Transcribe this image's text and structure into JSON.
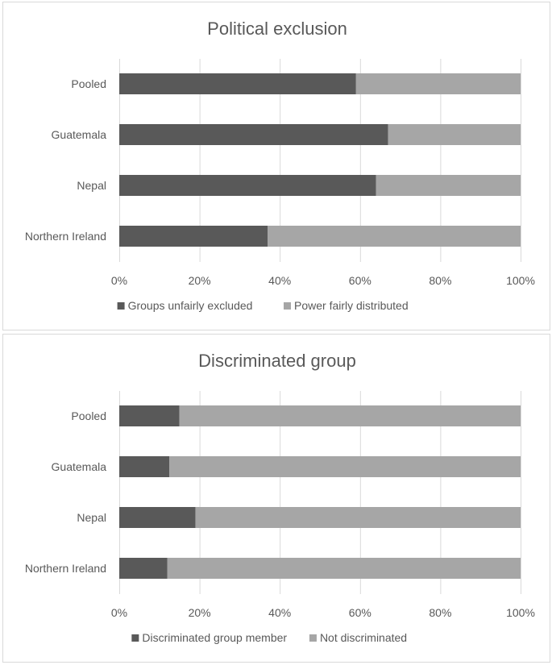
{
  "chart_data": [
    {
      "type": "bar",
      "orientation": "horizontal",
      "stacked": "100%",
      "title": "Political exclusion",
      "categories": [
        "Pooled",
        "Guatemala",
        "Nepal",
        "Northern Ireland"
      ],
      "series": [
        {
          "name": "Groups unfairly excluded",
          "values": [
            59,
            67,
            64,
            37
          ],
          "color": "#595959"
        },
        {
          "name": "Power fairly distributed",
          "values": [
            41,
            33,
            36,
            63
          ],
          "color": "#a6a6a6"
        }
      ],
      "x_ticks": [
        "0%",
        "20%",
        "40%",
        "60%",
        "80%",
        "100%"
      ],
      "xlim": [
        0,
        100
      ],
      "grid": true,
      "legend_position": "bottom"
    },
    {
      "type": "bar",
      "orientation": "horizontal",
      "stacked": "100%",
      "title": "Discriminated group",
      "categories": [
        "Pooled",
        "Guatemala",
        "Nepal",
        "Northern Ireland"
      ],
      "series": [
        {
          "name": "Discriminated group member",
          "values": [
            15,
            12.5,
            19,
            12
          ],
          "color": "#595959"
        },
        {
          "name": "Not discriminated",
          "values": [
            85,
            87.5,
            81,
            88
          ],
          "color": "#a6a6a6"
        }
      ],
      "x_ticks": [
        "0%",
        "20%",
        "40%",
        "60%",
        "80%",
        "100%"
      ],
      "xlim": [
        0,
        100
      ],
      "grid": true,
      "legend_position": "bottom"
    }
  ]
}
